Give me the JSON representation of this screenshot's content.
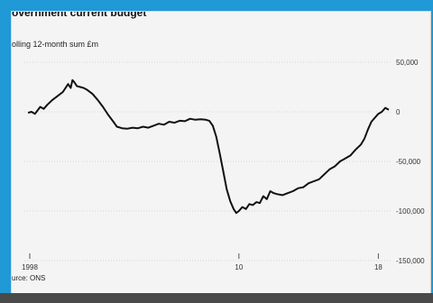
{
  "chart_data": {
    "type": "line",
    "title": "overnment current budget",
    "subtitle": "olling 12-month sum £m",
    "source": "urce: ONS",
    "xlabel": "",
    "ylabel": "",
    "x_ticks": [
      {
        "label": "1998",
        "value": 1998
      },
      {
        "label": "10",
        "value": 2010
      },
      {
        "label": "18",
        "value": 2018
      }
    ],
    "y_ticks": [
      50000,
      0,
      -50000,
      -100000,
      -150000
    ],
    "y_tick_labels": [
      "50,000",
      "0",
      "-50,000",
      "-100,000",
      "-150,000"
    ],
    "xlim": [
      1998,
      2018.6
    ],
    "ylim": [
      -150000,
      50000
    ],
    "grid": "horizontal",
    "series": [
      {
        "color": "#111111",
        "points": [
          [
            1997.9,
            -1000
          ],
          [
            1998.1,
            0
          ],
          [
            1998.3,
            -2000
          ],
          [
            1998.6,
            5000
          ],
          [
            1998.8,
            3000
          ],
          [
            1999.0,
            7000
          ],
          [
            1999.3,
            12000
          ],
          [
            1999.6,
            16000
          ],
          [
            1999.9,
            20000
          ],
          [
            2000.2,
            28000
          ],
          [
            2000.35,
            24000
          ],
          [
            2000.45,
            32000
          ],
          [
            2000.55,
            30000
          ],
          [
            2000.7,
            26000
          ],
          [
            2000.9,
            25000
          ],
          [
            2001.1,
            24000
          ],
          [
            2001.3,
            22000
          ],
          [
            2001.6,
            18000
          ],
          [
            2001.9,
            12000
          ],
          [
            2002.2,
            5000
          ],
          [
            2002.5,
            -3000
          ],
          [
            2002.8,
            -10000
          ],
          [
            2003.0,
            -15000
          ],
          [
            2003.3,
            -16500
          ],
          [
            2003.6,
            -17000
          ],
          [
            2003.9,
            -16000
          ],
          [
            2004.2,
            -16500
          ],
          [
            2004.5,
            -15000
          ],
          [
            2004.8,
            -16000
          ],
          [
            2005.1,
            -14000
          ],
          [
            2005.4,
            -12000
          ],
          [
            2005.7,
            -13000
          ],
          [
            2006.0,
            -10000
          ],
          [
            2006.3,
            -11000
          ],
          [
            2006.6,
            -9000
          ],
          [
            2006.9,
            -9500
          ],
          [
            2007.2,
            -7000
          ],
          [
            2007.5,
            -8000
          ],
          [
            2007.8,
            -7500
          ],
          [
            2008.1,
            -8000
          ],
          [
            2008.3,
            -9000
          ],
          [
            2008.5,
            -14000
          ],
          [
            2008.7,
            -25000
          ],
          [
            2008.9,
            -42000
          ],
          [
            2009.1,
            -60000
          ],
          [
            2009.3,
            -78000
          ],
          [
            2009.5,
            -90000
          ],
          [
            2009.7,
            -98000
          ],
          [
            2009.85,
            -102000
          ],
          [
            2010.0,
            -100000
          ],
          [
            2010.2,
            -96000
          ],
          [
            2010.4,
            -98000
          ],
          [
            2010.6,
            -93000
          ],
          [
            2010.8,
            -94000
          ],
          [
            2011.0,
            -91000
          ],
          [
            2011.2,
            -92000
          ],
          [
            2011.4,
            -85000
          ],
          [
            2011.6,
            -88000
          ],
          [
            2011.8,
            -80000
          ],
          [
            2012.0,
            -82000
          ],
          [
            2012.2,
            -83000
          ],
          [
            2012.5,
            -84000
          ],
          [
            2012.8,
            -82000
          ],
          [
            2013.1,
            -80000
          ],
          [
            2013.4,
            -77000
          ],
          [
            2013.7,
            -76000
          ],
          [
            2014.0,
            -72000
          ],
          [
            2014.3,
            -70000
          ],
          [
            2014.6,
            -68000
          ],
          [
            2014.9,
            -63000
          ],
          [
            2015.2,
            -58000
          ],
          [
            2015.5,
            -55000
          ],
          [
            2015.8,
            -50000
          ],
          [
            2016.1,
            -47000
          ],
          [
            2016.4,
            -44000
          ],
          [
            2016.7,
            -38000
          ],
          [
            2017.0,
            -33000
          ],
          [
            2017.2,
            -27000
          ],
          [
            2017.4,
            -18000
          ],
          [
            2017.6,
            -10000
          ],
          [
            2017.8,
            -6000
          ],
          [
            2018.0,
            -2000
          ],
          [
            2018.2,
            0
          ],
          [
            2018.4,
            4000
          ],
          [
            2018.6,
            2000
          ]
        ]
      }
    ]
  }
}
